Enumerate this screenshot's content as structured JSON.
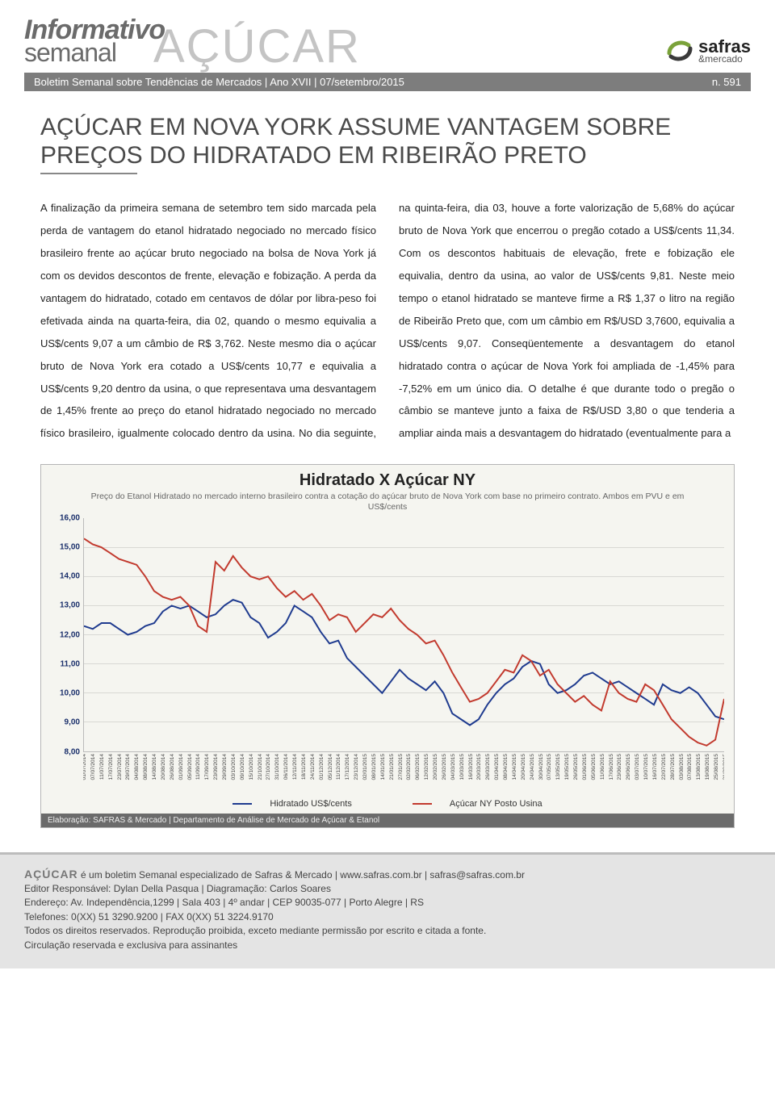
{
  "header": {
    "title1": "Informativo",
    "title2": "semanal",
    "title_big": "AÇÚCAR",
    "logo_name": "safras",
    "logo_sub": "&mercado",
    "subhead_left": "Boletim Semanal sobre Tendências de Mercados | Ano XVII | 07/setembro/2015",
    "subhead_right": "n. 591"
  },
  "article": {
    "headline": "AÇÚCAR EM NOVA YORK ASSUME VANTAGEM SOBRE PREÇOS DO HIDRATADO EM RIBEIRÃO PRETO",
    "body": "A finalização da primeira semana de setembro tem sido marcada pela perda de vantagem do etanol hidratado negociado no mercado físico brasileiro frente ao açúcar bruto negociado na bolsa de Nova York já com os devidos descontos de frente, elevação e fobização. A perda da vantagem do hidratado, cotado em centavos de dólar por libra-peso foi efetivada ainda na quarta-feira, dia 02, quando o mesmo equivalia a US$/cents 9,07 a um câmbio de R$ 3,762. Neste mesmo dia o açúcar bruto de Nova York era cotado a US$/cents 10,77 e equivalia a US$/cents 9,20 dentro da usina, o que representava uma desvantagem de 1,45% frente ao preço do etanol hidratado negociado no mercado físico brasileiro, igualmente colocado dentro da usina. No dia seguinte, na quinta-feira, dia 03, houve a forte valorização de 5,68% do açúcar bruto de Nova York que encerrou o pregão cotado a US$/cents 11,34. Com os descontos habituais de elevação, frete e fobização ele equivalia, dentro da usina, ao valor de US$/cents 9,81. Neste meio tempo o etanol hidratado se manteve firme a R$ 1,37 o litro na região de Ribeirão Preto que, com um câmbio em R$/USD 3,7600, equivalia a US$/cents 9,07. Conseqüentemente a desvantagem do etanol hidratado contra o açúcar de Nova York foi ampliada de -1,45% para -7,52% em um único dia. O detalhe é que durante todo o pregão o câmbio se manteve junto a faixa de R$/USD 3,80 o que tenderia a ampliar ainda mais a desvantagem do hidratado (eventualmente para a"
  },
  "chart": {
    "type": "line",
    "title": "Hidratado X Açúcar NY",
    "subtitle": "Preço do Etanol Hidratado no mercado interno brasileiro contra a cotação do açúcar bruto de Nova York com base no primeiro contrato. Ambos em PVU e em US$/cents",
    "ylim": [
      8.0,
      16.0
    ],
    "ytick_step": 1.0,
    "yticks_labels": [
      "8,00",
      "9,00",
      "10,00",
      "11,00",
      "12,00",
      "13,00",
      "14,00",
      "15,00",
      "16,00"
    ],
    "y_label_color": "#1a2f6b",
    "background_color": "#f5f5f0",
    "grid_color": "#d8d8d4",
    "title_fontsize": 20,
    "label_fontsize": 10,
    "x_dates": [
      "01/07/2014",
      "07/07/2014",
      "11/07/2014",
      "17/07/2014",
      "23/07/2014",
      "29/07/2014",
      "04/08/2014",
      "08/08/2014",
      "14/08/2014",
      "20/08/2014",
      "26/08/2014",
      "01/09/2014",
      "05/09/2014",
      "11/09/2014",
      "17/09/2014",
      "23/09/2014",
      "29/09/2014",
      "03/10/2014",
      "09/10/2014",
      "15/10/2014",
      "21/10/2014",
      "27/10/2014",
      "31/10/2014",
      "06/11/2014",
      "12/11/2014",
      "18/11/2014",
      "24/11/2014",
      "01/12/2014",
      "05/12/2014",
      "11/12/2014",
      "17/12/2014",
      "23/12/2014",
      "02/01/2015",
      "08/01/2015",
      "14/01/2015",
      "21/01/2015",
      "27/01/2015",
      "02/02/2015",
      "06/02/2015",
      "12/02/2015",
      "20/02/2015",
      "26/02/2015",
      "04/03/2015",
      "10/03/2015",
      "16/03/2015",
      "20/03/2015",
      "26/03/2015",
      "01/04/2015",
      "08/04/2015",
      "14/04/2015",
      "20/04/2015",
      "24/04/2015",
      "30/04/2015",
      "07/05/2015",
      "13/05/2015",
      "19/05/2015",
      "26/05/2015",
      "01/06/2015",
      "05/06/2015",
      "11/06/2015",
      "17/06/2015",
      "23/06/2015",
      "29/06/2015",
      "03/07/2015",
      "10/07/2015",
      "16/07/2015",
      "22/07/2015",
      "28/07/2015",
      "03/08/2015",
      "07/08/2015",
      "13/08/2015",
      "19/08/2015",
      "25/08/2015",
      "31/08/2015"
    ],
    "series": [
      {
        "name": "Hidratado US$/cents",
        "color": "#1f3b8f",
        "line_width": 2,
        "values": [
          12.3,
          12.2,
          12.4,
          12.4,
          12.2,
          12.0,
          12.1,
          12.3,
          12.4,
          12.8,
          13.0,
          12.9,
          13.0,
          12.8,
          12.6,
          12.7,
          13.0,
          13.2,
          13.1,
          12.6,
          12.4,
          11.9,
          12.1,
          12.4,
          13.0,
          12.8,
          12.6,
          12.1,
          11.7,
          11.8,
          11.2,
          10.9,
          10.6,
          10.3,
          10.0,
          10.4,
          10.8,
          10.5,
          10.3,
          10.1,
          10.4,
          10.0,
          9.3,
          9.1,
          8.9,
          9.1,
          9.6,
          10.0,
          10.3,
          10.5,
          10.9,
          11.1,
          11.0,
          10.3,
          10.0,
          10.1,
          10.3,
          10.6,
          10.7,
          10.5,
          10.3,
          10.4,
          10.2,
          10.0,
          9.8,
          9.6,
          10.3,
          10.1,
          10.0,
          10.2,
          10.0,
          9.6,
          9.2,
          9.1
        ]
      },
      {
        "name": "Açúcar NY Posto Usina",
        "color": "#c23a2e",
        "line_width": 2,
        "values": [
          15.3,
          15.1,
          15.0,
          14.8,
          14.6,
          14.5,
          14.4,
          14.0,
          13.5,
          13.3,
          13.2,
          13.3,
          13.0,
          12.3,
          12.1,
          14.5,
          14.2,
          14.7,
          14.3,
          14.0,
          13.9,
          14.0,
          13.6,
          13.3,
          13.5,
          13.2,
          13.4,
          13.0,
          12.5,
          12.7,
          12.6,
          12.1,
          12.4,
          12.7,
          12.6,
          12.9,
          12.5,
          12.2,
          12.0,
          11.7,
          11.8,
          11.3,
          10.7,
          10.2,
          9.7,
          9.8,
          10.0,
          10.4,
          10.8,
          10.7,
          11.3,
          11.1,
          10.6,
          10.8,
          10.3,
          10.0,
          9.7,
          9.9,
          9.6,
          9.4,
          10.4,
          10.0,
          9.8,
          9.7,
          10.3,
          10.1,
          9.6,
          9.1,
          8.8,
          8.5,
          8.3,
          8.2,
          8.4,
          9.8
        ]
      }
    ],
    "legend": {
      "items": [
        "Hidratado US$/cents",
        "Açúcar NY Posto Usina"
      ]
    },
    "footer": "Elaboração: SAFRAS & Mercado | Departamento de Análise de Mercado de Açúcar & Etanol"
  },
  "footer": {
    "brand": "AÇÚCAR",
    "line1_rest": " é um boletim Semanal especializado de Safras & Mercado | www.safras.com.br | safras@safras.com.br",
    "line2": "Editor Responsável: Dylan Della Pasqua | Diagramação: Carlos Soares",
    "line3": "Endereço: Av. Independência,1299 | Sala 403 | 4º andar | CEP 90035-077 | Porto Alegre | RS",
    "line4": "Telefones: 0(XX) 51 3290.9200 | FAX 0(XX) 51 3224.9170",
    "line5": "Todos os direitos reservados. Reprodução proibida, exceto mediante permissão por escrito e citada a fonte.",
    "line6": "Circulação reservada e exclusiva para assinantes"
  }
}
